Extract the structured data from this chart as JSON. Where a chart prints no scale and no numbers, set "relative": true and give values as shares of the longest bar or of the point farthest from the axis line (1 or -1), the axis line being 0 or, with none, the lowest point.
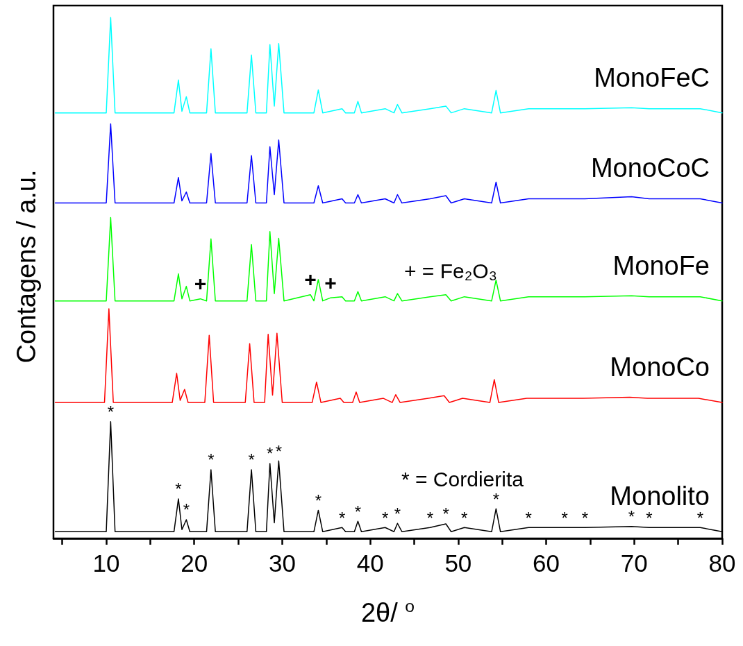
{
  "chart_data": {
    "type": "line",
    "relative": true,
    "xlabel": "2θ/ $^{o}$",
    "ylabel": "Contagens / a.u.",
    "xlim": [
      4,
      80
    ],
    "xticks": [
      {
        "value": 5,
        "label": null
      },
      10,
      {
        "value": 15,
        "label": null
      },
      20,
      {
        "value": 25,
        "label": null
      },
      30,
      {
        "value": 35,
        "label": null
      },
      40,
      {
        "value": 45,
        "label": null
      },
      50,
      {
        "value": 55,
        "label": null
      },
      60,
      {
        "value": 65,
        "label": null
      },
      70,
      {
        "value": 75,
        "label": null
      },
      80
    ],
    "grid": false,
    "legend": false,
    "marker": "none",
    "line_style": "solid",
    "x": [
      4.2,
      10.0,
      10.5,
      11.0,
      17.7,
      18.2,
      18.6,
      19.1,
      19.5,
      21.4,
      21.9,
      22.4,
      26.0,
      26.5,
      27.0,
      28.2,
      28.6,
      29.1,
      29.6,
      30.2,
      33.6,
      34.1,
      34.6,
      36.8,
      37.2,
      38.2,
      38.6,
      39.0,
      41.7,
      42.7,
      43.1,
      43.6,
      46.8,
      48.6,
      49.2,
      50.7,
      53.8,
      54.3,
      54.8,
      58.0,
      62.1,
      64.4,
      69.7,
      71.7,
      77.5,
      80
    ],
    "series": [
      {
        "name": "MonoFeC",
        "color": "#00ffff",
        "values": [
          0.817,
          0.817,
          1.0,
          0.817,
          0.817,
          0.88,
          0.82,
          0.848,
          0.817,
          0.817,
          0.94,
          0.817,
          0.817,
          0.928,
          0.817,
          0.817,
          0.948,
          0.83,
          0.95,
          0.817,
          0.817,
          0.861,
          0.817,
          0.825,
          0.817,
          0.817,
          0.839,
          0.817,
          0.825,
          0.817,
          0.833,
          0.817,
          0.825,
          0.83,
          0.817,
          0.825,
          0.817,
          0.86,
          0.817,
          0.825,
          0.825,
          0.825,
          0.827,
          0.825,
          0.825,
          0.817
        ]
      },
      {
        "name": "MonoCoC",
        "color": "#0000ff",
        "values": [
          0.644,
          0.644,
          0.796,
          0.644,
          0.644,
          0.693,
          0.648,
          0.665,
          0.644,
          0.644,
          0.739,
          0.644,
          0.644,
          0.735,
          0.644,
          0.644,
          0.752,
          0.66,
          0.765,
          0.644,
          0.644,
          0.677,
          0.644,
          0.652,
          0.644,
          0.644,
          0.66,
          0.644,
          0.652,
          0.644,
          0.66,
          0.644,
          0.652,
          0.658,
          0.644,
          0.652,
          0.644,
          0.684,
          0.644,
          0.652,
          0.652,
          0.652,
          0.656,
          0.652,
          0.652,
          0.644
        ]
      },
      {
        "name": "MonoFe",
        "color": "#00ff00",
        "x": [
          4.2,
          10.0,
          10.5,
          11.0,
          17.7,
          18.2,
          18.6,
          19.1,
          19.5,
          20.7,
          21.4,
          21.9,
          22.4,
          26.0,
          26.5,
          27.0,
          28.2,
          28.6,
          29.1,
          29.6,
          30.2,
          33.2,
          33.6,
          34.1,
          34.6,
          35.5,
          36.8,
          37.2,
          38.2,
          38.6,
          39.0,
          41.7,
          42.7,
          43.1,
          43.6,
          46.8,
          48.6,
          49.2,
          50.7,
          53.8,
          54.3,
          54.8,
          58.0,
          62.1,
          64.4,
          69.7,
          71.7,
          77.5,
          80
        ],
        "values": [
          0.456,
          0.456,
          0.616,
          0.456,
          0.456,
          0.508,
          0.46,
          0.484,
          0.456,
          0.46,
          0.456,
          0.575,
          0.456,
          0.456,
          0.564,
          0.456,
          0.456,
          0.589,
          0.47,
          0.576,
          0.456,
          0.468,
          0.456,
          0.497,
          0.456,
          0.462,
          0.464,
          0.456,
          0.456,
          0.474,
          0.456,
          0.464,
          0.456,
          0.47,
          0.456,
          0.464,
          0.468,
          0.456,
          0.464,
          0.456,
          0.496,
          0.456,
          0.464,
          0.464,
          0.464,
          0.466,
          0.464,
          0.464,
          0.456
        ]
      },
      {
        "name": "MonoCo",
        "color": "#ff0000",
        "x": [
          4.2,
          9.8,
          10.3,
          10.8,
          17.5,
          18.0,
          18.4,
          18.9,
          19.3,
          21.2,
          21.7,
          22.2,
          25.8,
          26.3,
          26.8,
          28.0,
          28.4,
          28.9,
          29.4,
          30.0,
          33.4,
          33.9,
          34.4,
          36.6,
          37.0,
          38.0,
          38.4,
          38.8,
          41.5,
          42.5,
          42.9,
          43.4,
          46.6,
          48.4,
          49.0,
          50.5,
          53.6,
          54.1,
          54.6,
          57.8,
          61.9,
          64.2,
          69.5,
          71.5,
          77.3,
          80
        ],
        "values": [
          0.261,
          0.261,
          0.441,
          0.261,
          0.261,
          0.317,
          0.265,
          0.286,
          0.261,
          0.261,
          0.39,
          0.261,
          0.261,
          0.374,
          0.261,
          0.261,
          0.392,
          0.275,
          0.394,
          0.261,
          0.261,
          0.3,
          0.261,
          0.269,
          0.261,
          0.261,
          0.281,
          0.261,
          0.269,
          0.261,
          0.276,
          0.261,
          0.269,
          0.274,
          0.261,
          0.269,
          0.261,
          0.305,
          0.261,
          0.269,
          0.269,
          0.269,
          0.271,
          0.269,
          0.269,
          0.261
        ]
      },
      {
        "name": "Monolito",
        "color": "#000000",
        "values": [
          0.013,
          0.013,
          0.224,
          0.013,
          0.013,
          0.076,
          0.017,
          0.036,
          0.013,
          0.013,
          0.132,
          0.013,
          0.013,
          0.132,
          0.013,
          0.013,
          0.144,
          0.03,
          0.149,
          0.013,
          0.013,
          0.054,
          0.013,
          0.021,
          0.013,
          0.013,
          0.033,
          0.013,
          0.021,
          0.013,
          0.029,
          0.013,
          0.021,
          0.028,
          0.013,
          0.021,
          0.013,
          0.057,
          0.013,
          0.021,
          0.021,
          0.021,
          0.023,
          0.021,
          0.021,
          0.013
        ]
      }
    ],
    "annotations": [
      "+ = Fe₂O₃",
      "* = Cordierita",
      {
        "text": "+",
        "x": 20.7,
        "y": 0.46
      },
      {
        "text": "+",
        "x": 33.2,
        "y": 0.468
      },
      {
        "text": "+",
        "x": 35.5,
        "y": 0.462
      },
      {
        "text": "*",
        "x": 10.5,
        "y": 0.224
      },
      {
        "text": "*",
        "x": 18.2,
        "y": 0.076
      },
      {
        "text": "*",
        "x": 19.1,
        "y": 0.036
      },
      {
        "text": "*",
        "x": 21.9,
        "y": 0.132
      },
      {
        "text": "*",
        "x": 26.5,
        "y": 0.132
      },
      {
        "text": "*",
        "x": 28.6,
        "y": 0.144
      },
      {
        "text": "*",
        "x": 29.6,
        "y": 0.149
      },
      {
        "text": "*",
        "x": 34.1,
        "y": 0.054
      },
      {
        "text": "*",
        "x": 36.8,
        "y": 0.021
      },
      {
        "text": "*",
        "x": 38.6,
        "y": 0.033
      },
      {
        "text": "*",
        "x": 41.7,
        "y": 0.021
      },
      {
        "text": "*",
        "x": 43.1,
        "y": 0.029
      },
      {
        "text": "*",
        "x": 46.8,
        "y": 0.021
      },
      {
        "text": "*",
        "x": 48.6,
        "y": 0.028
      },
      {
        "text": "*",
        "x": 50.7,
        "y": 0.021
      },
      {
        "text": "*",
        "x": 54.3,
        "y": 0.057
      },
      {
        "text": "*",
        "x": 58.0,
        "y": 0.021
      },
      {
        "text": "*",
        "x": 62.1,
        "y": 0.021
      },
      {
        "text": "*",
        "x": 64.4,
        "y": 0.021
      },
      {
        "text": "*",
        "x": 69.7,
        "y": 0.023
      },
      {
        "text": "*",
        "x": 71.7,
        "y": 0.021
      },
      {
        "text": "*",
        "x": 77.5,
        "y": 0.021
      }
    ]
  }
}
